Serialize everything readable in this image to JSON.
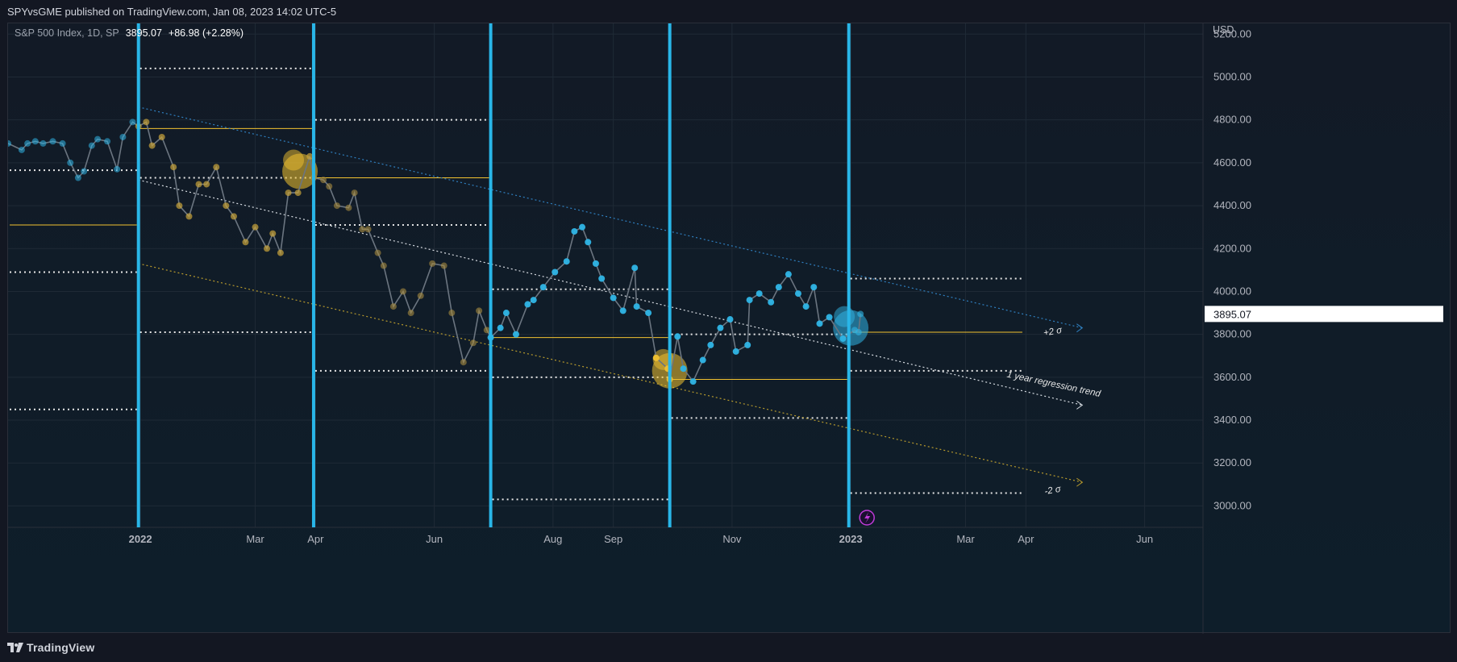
{
  "header": {
    "publisher_line": "SPYvsGME published on TradingView.com, Jan 08, 2023 14:02 UTC-5"
  },
  "legend": {
    "symbol": "S&P 500 Index, 1D, SP",
    "last": "3895.07",
    "change": "+86.98 (+2.28%)"
  },
  "footer": {
    "brand": "TradingView"
  },
  "colors": {
    "background": "#131722",
    "cyan_line": "#29b6e8",
    "gold": "#f2c230",
    "blue_dots": "#2fb5e6",
    "white_dotted": "#e6e6e6"
  },
  "chart_data": {
    "type": "line",
    "currency": "USD",
    "ylim": [
      2900,
      5250
    ],
    "y_ticks": [
      "5200.00",
      "5000.00",
      "4800.00",
      "4600.00",
      "4400.00",
      "4200.00",
      "4000.00",
      "3800.00",
      "3600.00",
      "3400.00",
      "3200.00",
      "3000.00"
    ],
    "y_tick_values": [
      5200,
      5000,
      4800,
      4600,
      4400,
      4200,
      4000,
      3800,
      3600,
      3400,
      3200,
      3000
    ],
    "x_tick_labels": [
      "2022",
      "Mar",
      "Apr",
      "Jun",
      "Aug",
      "Sep",
      "Nov",
      "2023",
      "Mar",
      "Apr",
      "Jun"
    ],
    "x_tick_dates": [
      "2022-01-01",
      "2022-03-01",
      "2022-04-01",
      "2022-06-01",
      "2022-08-01",
      "2022-09-01",
      "2022-11-01",
      "2023-01-01",
      "2023-03-01",
      "2023-04-01",
      "2023-06-01"
    ],
    "x_range": [
      "2021-10-25",
      "2023-07-01"
    ],
    "last_price_label": "3895.07",
    "vertical_markers": [
      "2021-12-31",
      "2022-03-31",
      "2022-06-30",
      "2022-09-30",
      "2022-12-31"
    ],
    "series": [
      {
        "name": "S&P 500 Index",
        "points": [
          [
            "2021-10-25",
            4690
          ],
          [
            "2021-11-01",
            4660
          ],
          [
            "2021-11-04",
            4690
          ],
          [
            "2021-11-08",
            4700
          ],
          [
            "2021-11-12",
            4690
          ],
          [
            "2021-11-17",
            4700
          ],
          [
            "2021-11-22",
            4690
          ],
          [
            "2021-11-26",
            4600
          ],
          [
            "2021-11-30",
            4530
          ],
          [
            "2021-12-03",
            4560
          ],
          [
            "2021-12-07",
            4680
          ],
          [
            "2021-12-10",
            4710
          ],
          [
            "2021-12-15",
            4700
          ],
          [
            "2021-12-20",
            4570
          ],
          [
            "2021-12-23",
            4720
          ],
          [
            "2021-12-28",
            4790
          ],
          [
            "2021-12-31",
            4770
          ],
          [
            "2022-01-04",
            4790
          ],
          [
            "2022-01-07",
            4680
          ],
          [
            "2022-01-12",
            4720
          ],
          [
            "2022-01-18",
            4580
          ],
          [
            "2022-01-21",
            4400
          ],
          [
            "2022-01-26",
            4350
          ],
          [
            "2022-01-31",
            4500
          ],
          [
            "2022-02-04",
            4500
          ],
          [
            "2022-02-09",
            4580
          ],
          [
            "2022-02-14",
            4400
          ],
          [
            "2022-02-18",
            4350
          ],
          [
            "2022-02-24",
            4230
          ],
          [
            "2022-03-01",
            4300
          ],
          [
            "2022-03-07",
            4200
          ],
          [
            "2022-03-10",
            4270
          ],
          [
            "2022-03-14",
            4180
          ],
          [
            "2022-03-18",
            4460
          ],
          [
            "2022-03-23",
            4460
          ],
          [
            "2022-03-29",
            4630
          ],
          [
            "2022-03-31",
            4530
          ],
          [
            "2022-04-05",
            4520
          ],
          [
            "2022-04-08",
            4490
          ],
          [
            "2022-04-12",
            4400
          ],
          [
            "2022-04-18",
            4390
          ],
          [
            "2022-04-21",
            4460
          ],
          [
            "2022-04-25",
            4290
          ],
          [
            "2022-04-28",
            4290
          ],
          [
            "2022-05-03",
            4180
          ],
          [
            "2022-05-06",
            4120
          ],
          [
            "2022-05-11",
            3930
          ],
          [
            "2022-05-16",
            4000
          ],
          [
            "2022-05-20",
            3900
          ],
          [
            "2022-05-25",
            3980
          ],
          [
            "2022-05-31",
            4130
          ],
          [
            "2022-06-06",
            4120
          ],
          [
            "2022-06-10",
            3900
          ],
          [
            "2022-06-16",
            3670
          ],
          [
            "2022-06-21",
            3760
          ],
          [
            "2022-06-24",
            3910
          ],
          [
            "2022-06-28",
            3820
          ],
          [
            "2022-06-30",
            3785
          ],
          [
            "2022-07-05",
            3830
          ],
          [
            "2022-07-08",
            3900
          ],
          [
            "2022-07-13",
            3800
          ],
          [
            "2022-07-19",
            3940
          ],
          [
            "2022-07-22",
            3960
          ],
          [
            "2022-07-27",
            4020
          ],
          [
            "2022-08-02",
            4090
          ],
          [
            "2022-08-08",
            4140
          ],
          [
            "2022-08-12",
            4280
          ],
          [
            "2022-08-16",
            4300
          ],
          [
            "2022-08-19",
            4230
          ],
          [
            "2022-08-23",
            4130
          ],
          [
            "2022-08-26",
            4060
          ],
          [
            "2022-09-01",
            3970
          ],
          [
            "2022-09-06",
            3910
          ],
          [
            "2022-09-12",
            4110
          ],
          [
            "2022-09-13",
            3930
          ],
          [
            "2022-09-19",
            3900
          ],
          [
            "2022-09-23",
            3690
          ],
          [
            "2022-09-29",
            3640
          ],
          [
            "2022-09-30",
            3590
          ],
          [
            "2022-10-04",
            3790
          ],
          [
            "2022-10-07",
            3640
          ],
          [
            "2022-10-12",
            3580
          ],
          [
            "2022-10-17",
            3680
          ],
          [
            "2022-10-21",
            3750
          ],
          [
            "2022-10-26",
            3830
          ],
          [
            "2022-10-31",
            3870
          ],
          [
            "2022-11-03",
            3720
          ],
          [
            "2022-11-09",
            3750
          ],
          [
            "2022-11-10",
            3960
          ],
          [
            "2022-11-15",
            3990
          ],
          [
            "2022-11-21",
            3950
          ],
          [
            "2022-11-25",
            4020
          ],
          [
            "2022-11-30",
            4080
          ],
          [
            "2022-12-05",
            3990
          ],
          [
            "2022-12-09",
            3930
          ],
          [
            "2022-12-13",
            4020
          ],
          [
            "2022-12-16",
            3850
          ],
          [
            "2022-12-21",
            3880
          ],
          [
            "2022-12-28",
            3780
          ],
          [
            "2023-01-03",
            3820
          ],
          [
            "2023-01-05",
            3810
          ],
          [
            "2023-01-06",
            3895
          ]
        ]
      },
      {
        "name": "Regression trend",
        "points": [
          [
            "2021-12-31",
            4520
          ],
          [
            "2023-04-30",
            3470
          ]
        ]
      },
      {
        "name": "+2σ",
        "points": [
          [
            "2021-12-31",
            4860
          ],
          [
            "2023-04-30",
            3830
          ]
        ]
      },
      {
        "name": "-2σ",
        "points": [
          [
            "2021-12-31",
            4130
          ],
          [
            "2023-04-30",
            3110
          ]
        ]
      }
    ],
    "horizontal_levels": [
      {
        "style": "dotted",
        "color": "white",
        "from": "2021-10-25",
        "to": "2021-12-31",
        "value": 4565
      },
      {
        "style": "dotted",
        "color": "white",
        "from": "2021-10-25",
        "to": "2021-12-31",
        "value": 4090
      },
      {
        "style": "dotted",
        "color": "white",
        "from": "2021-10-25",
        "to": "2021-12-31",
        "value": 3450
      },
      {
        "style": "solid",
        "color": "gold",
        "from": "2021-10-25",
        "to": "2021-12-31",
        "value": 4310
      },
      {
        "style": "dotted",
        "color": "white",
        "from": "2021-12-31",
        "to": "2022-03-31",
        "value": 5040
      },
      {
        "style": "solid",
        "color": "gold",
        "from": "2021-12-31",
        "to": "2022-03-31",
        "value": 4760
      },
      {
        "style": "dotted",
        "color": "white",
        "from": "2021-12-31",
        "to": "2022-03-31",
        "value": 4530
      },
      {
        "style": "dotted",
        "color": "white",
        "from": "2021-12-31",
        "to": "2022-03-31",
        "value": 3810
      },
      {
        "style": "dotted",
        "color": "white",
        "from": "2022-03-31",
        "to": "2022-06-30",
        "value": 4800
      },
      {
        "style": "solid",
        "color": "gold",
        "from": "2022-03-31",
        "to": "2022-06-30",
        "value": 4530
      },
      {
        "style": "dotted",
        "color": "white",
        "from": "2022-03-31",
        "to": "2022-06-30",
        "value": 4310
      },
      {
        "style": "dotted",
        "color": "white",
        "from": "2022-03-31",
        "to": "2022-06-30",
        "value": 3630
      },
      {
        "style": "dotted",
        "color": "white",
        "from": "2022-06-30",
        "to": "2022-09-30",
        "value": 4010
      },
      {
        "style": "solid",
        "color": "gold",
        "from": "2022-06-30",
        "to": "2022-09-30",
        "value": 3785
      },
      {
        "style": "dotted",
        "color": "white",
        "from": "2022-06-30",
        "to": "2022-09-30",
        "value": 3600
      },
      {
        "style": "dotted",
        "color": "white",
        "from": "2022-06-30",
        "to": "2022-09-30",
        "value": 3030
      },
      {
        "style": "dotted",
        "color": "white",
        "from": "2022-09-30",
        "to": "2022-12-31",
        "value": 3800
      },
      {
        "style": "solid",
        "color": "gold",
        "from": "2022-09-30",
        "to": "2022-12-31",
        "value": 3590
      },
      {
        "style": "dotted",
        "color": "white",
        "from": "2022-09-30",
        "to": "2022-12-31",
        "value": 3410
      },
      {
        "style": "dotted",
        "color": "white",
        "from": "2022-12-31",
        "to": "2023-03-31",
        "value": 4060
      },
      {
        "style": "solid",
        "color": "gold",
        "from": "2022-12-31",
        "to": "2023-03-31",
        "value": 3810
      },
      {
        "style": "dotted",
        "color": "white",
        "from": "2022-12-31",
        "to": "2023-03-31",
        "value": 3630
      },
      {
        "style": "dotted",
        "color": "white",
        "from": "2022-12-31",
        "to": "2023-03-31",
        "value": 3060
      }
    ],
    "highlights": [
      {
        "color": "gold",
        "date": "2022-03-24",
        "value": 4560
      },
      {
        "color": "gold",
        "date": "2022-09-30",
        "value": 3630
      },
      {
        "color": "cyan",
        "date": "2023-01-01",
        "value": 3830
      }
    ],
    "annotations": [
      "+2 σ",
      "1 year regression trend",
      "-2 σ"
    ]
  }
}
